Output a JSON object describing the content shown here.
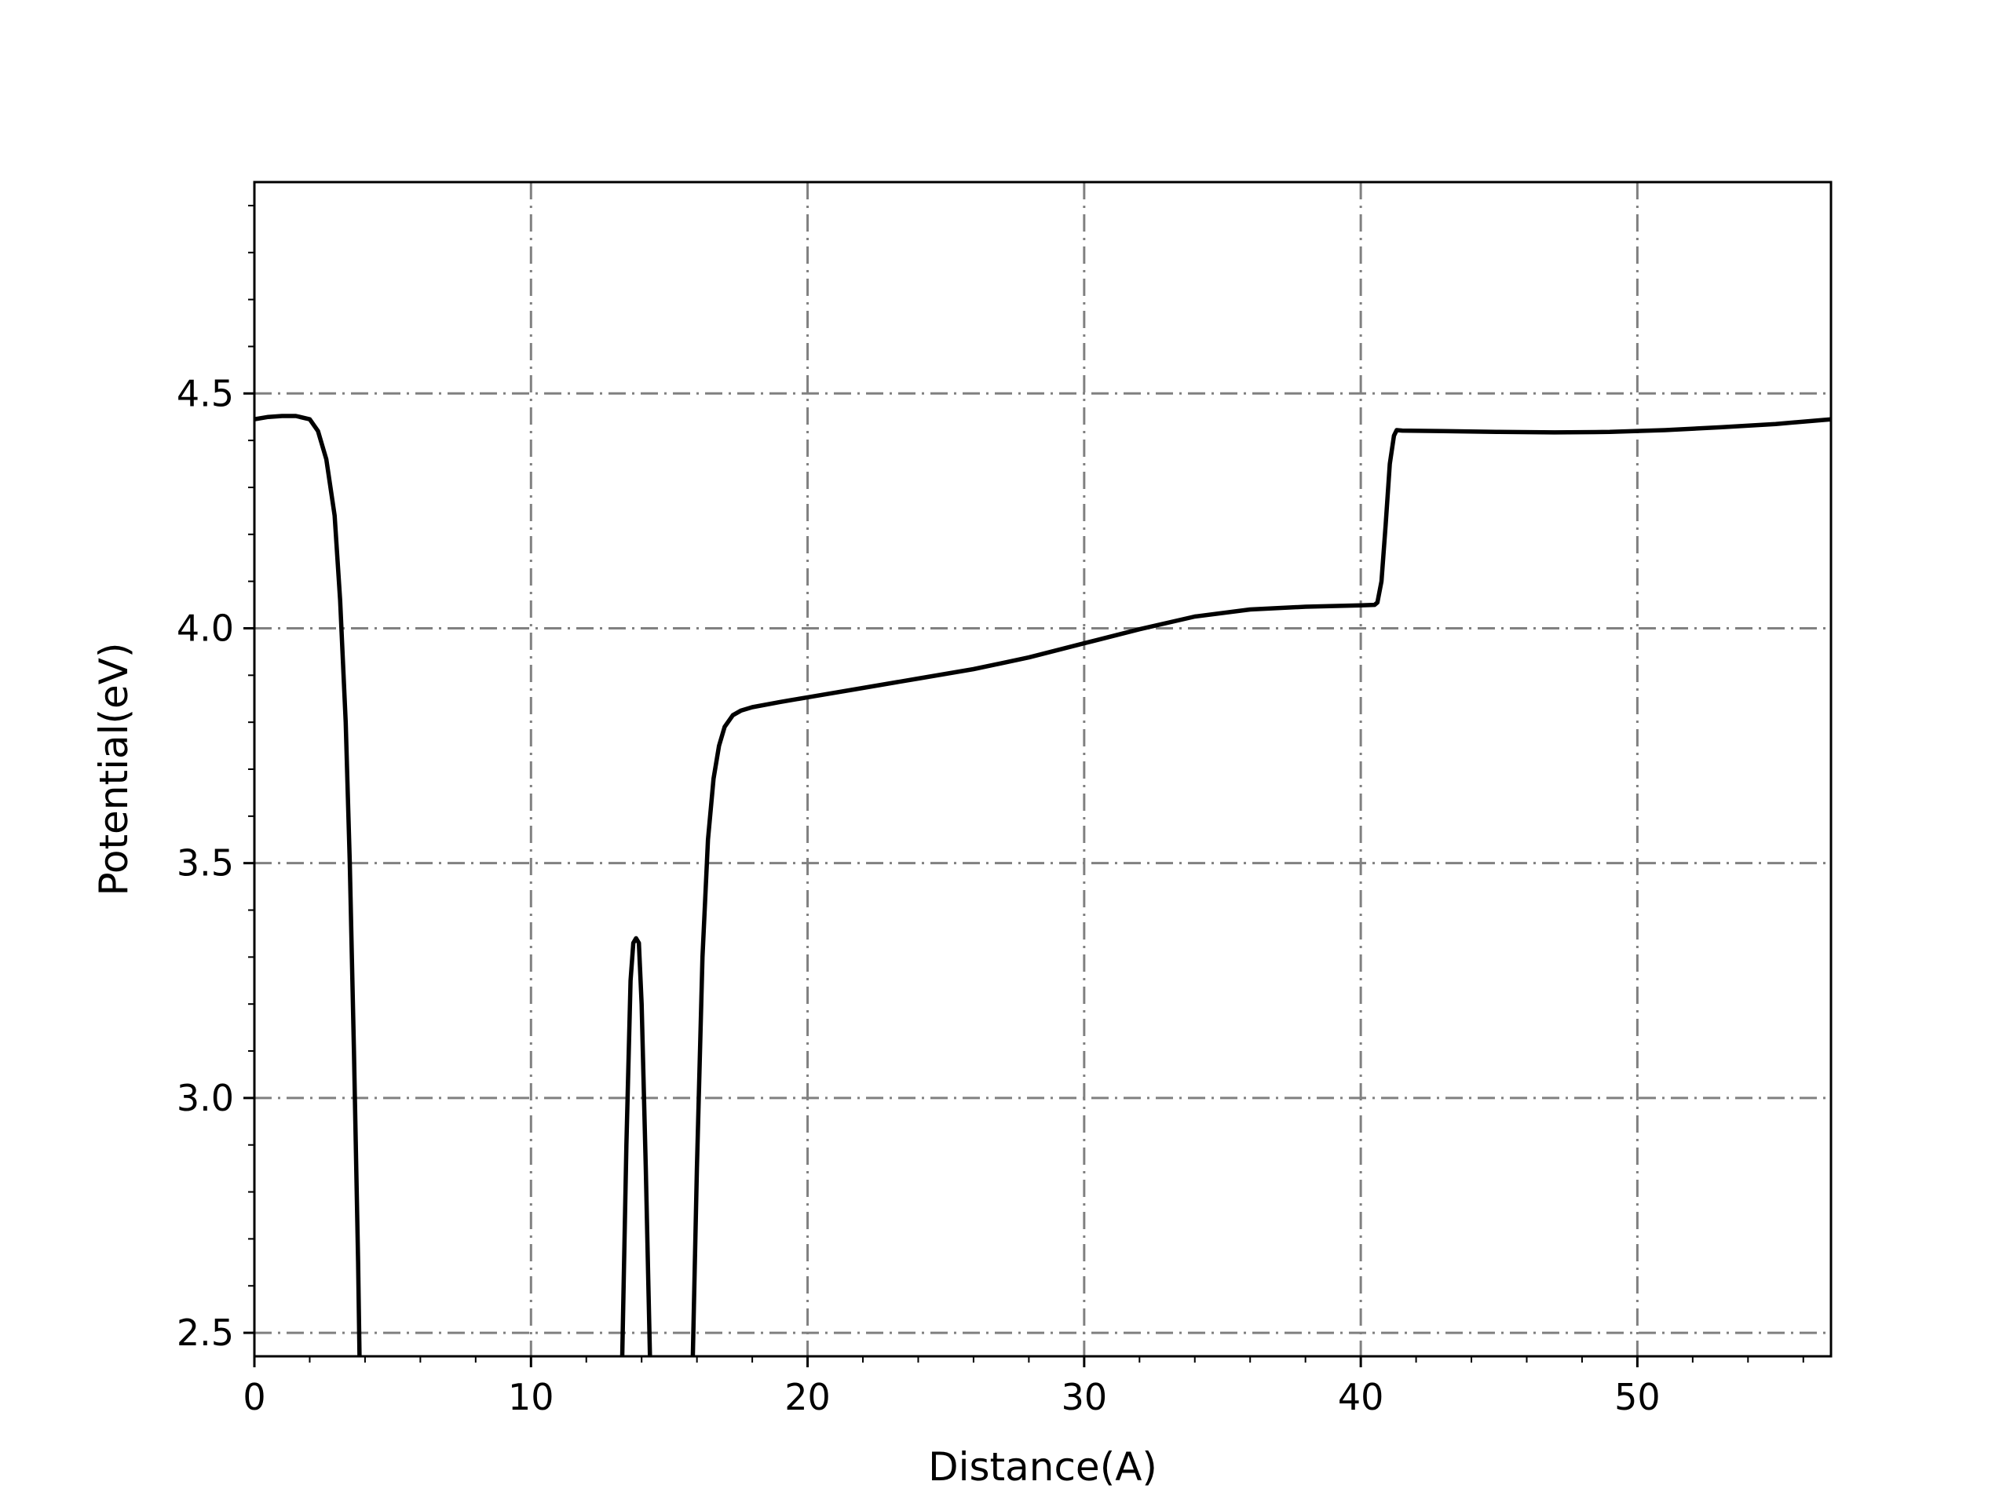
{
  "chart_data": {
    "type": "line",
    "title": "",
    "xlabel": "Distance(A)",
    "ylabel": "Potential(eV)",
    "xlim": [
      0,
      57
    ],
    "ylim": [
      2.45,
      4.95
    ],
    "xticks": [
      0,
      10,
      20,
      30,
      40,
      50
    ],
    "xtick_labels": [
      "0",
      "10",
      "20",
      "30",
      "40",
      "50"
    ],
    "yticks": [
      2.5,
      3.0,
      3.5,
      4.0,
      4.5
    ],
    "ytick_labels": [
      "2.5",
      "3.0",
      "3.5",
      "4.0",
      "4.5"
    ],
    "x_minor_step": 2,
    "y_minor_step": 0.1,
    "grid": true,
    "grid_style": "dash-dot",
    "legend": "none",
    "colors": {
      "line": "#000000",
      "grid": "#808080",
      "axes": "#000000"
    },
    "series": [
      {
        "x": [
          0,
          0.5,
          1.0,
          1.5,
          2.0,
          2.3,
          2.6,
          2.9,
          3.1,
          3.3,
          3.45,
          3.6,
          3.75,
          3.8
        ],
        "y": [
          4.445,
          4.45,
          4.452,
          4.452,
          4.445,
          4.42,
          4.36,
          4.24,
          4.06,
          3.8,
          3.5,
          3.1,
          2.65,
          2.45
        ]
      },
      {
        "x": [
          13.3,
          13.45,
          13.6,
          13.7,
          13.8,
          13.9,
          14.0,
          14.15,
          14.3
        ],
        "y": [
          2.45,
          2.9,
          3.25,
          3.33,
          3.34,
          3.33,
          3.2,
          2.85,
          2.45
        ]
      },
      {
        "x": [
          15.85,
          16.0,
          16.2,
          16.4,
          16.6,
          16.8,
          17.0,
          17.3,
          17.6,
          18.0,
          19.0,
          20.0,
          22.0,
          24.0,
          26.0,
          28.0,
          30.0,
          32.0,
          34.0,
          36.0,
          38.0,
          40.0,
          40.5,
          40.6,
          40.75,
          40.9,
          41.05,
          41.2,
          41.3,
          41.5,
          43.0,
          45.0,
          47.0,
          49.0,
          51.0,
          53.0,
          55.0,
          57.0
        ],
        "y": [
          2.45,
          2.85,
          3.3,
          3.55,
          3.68,
          3.75,
          3.79,
          3.815,
          3.825,
          3.832,
          3.843,
          3.853,
          3.873,
          3.893,
          3.913,
          3.938,
          3.968,
          3.998,
          4.025,
          4.04,
          4.046,
          4.049,
          4.05,
          4.055,
          4.1,
          4.22,
          4.35,
          4.41,
          4.422,
          4.421,
          4.42,
          4.418,
          4.417,
          4.418,
          4.422,
          4.428,
          4.435,
          4.445
        ]
      }
    ]
  }
}
